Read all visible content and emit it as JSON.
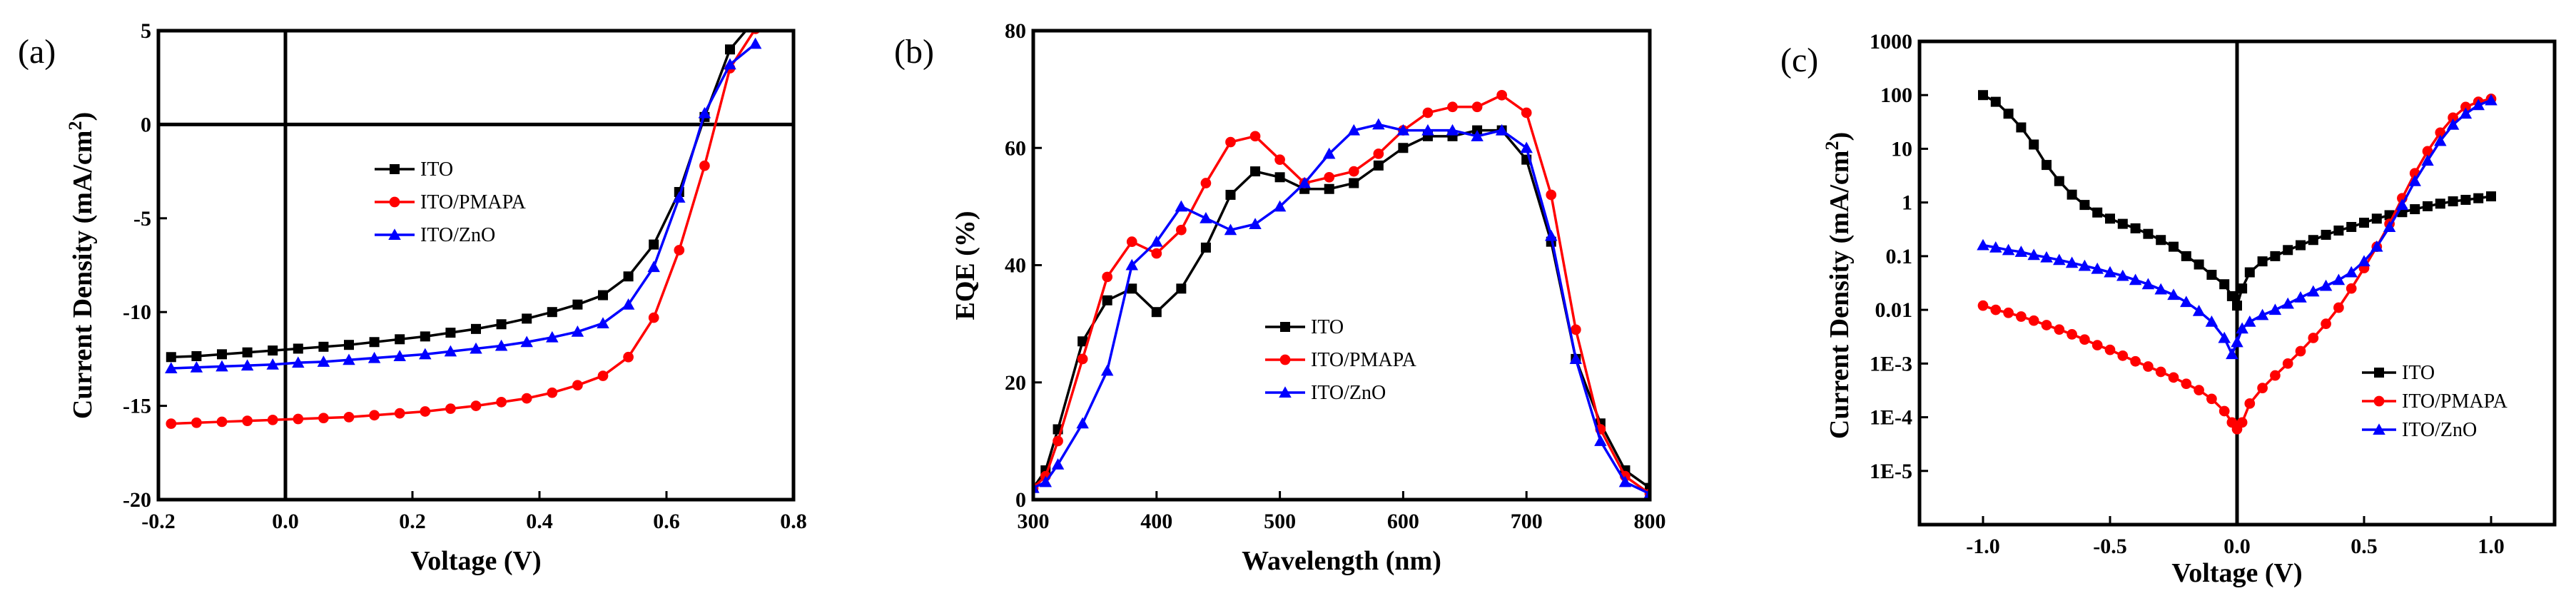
{
  "chart_data": [
    {
      "type": "line",
      "panel_label": "(a)",
      "xlabel": "Voltage (V)",
      "ylabel": "Current Density (mA/cm²)",
      "ylabel_base": "Current Density (mA/cm",
      "ylabel_sup": "2",
      "ylabel_end": ")",
      "xlim": [
        -0.2,
        0.8
      ],
      "ylim": [
        -20,
        5
      ],
      "xticks": [
        "-0.2",
        "0.0",
        "0.2",
        "0.4",
        "0.6",
        "0.8"
      ],
      "yticks": [
        "5",
        "0",
        "-5",
        "-10",
        "-15",
        "-20"
      ],
      "legend": "center",
      "series": [
        {
          "name": "ITO",
          "color": "#000000",
          "marker": "square",
          "x": [
            -0.18,
            -0.14,
            -0.1,
            -0.06,
            -0.02,
            0.02,
            0.06,
            0.1,
            0.14,
            0.18,
            0.22,
            0.26,
            0.3,
            0.34,
            0.38,
            0.42,
            0.46,
            0.5,
            0.54,
            0.58,
            0.62,
            0.66,
            0.7,
            0.73
          ],
          "y": [
            -12.4,
            -12.35,
            -12.25,
            -12.15,
            -12.05,
            -11.95,
            -11.85,
            -11.75,
            -11.6,
            -11.45,
            -11.3,
            -11.1,
            -10.9,
            -10.65,
            -10.35,
            -10.0,
            -9.6,
            -9.1,
            -8.1,
            -6.4,
            -3.6,
            0.4,
            4.0,
            5.2
          ]
        },
        {
          "name": "ITO/PMAPA",
          "color": "#ff0000",
          "marker": "circle",
          "x": [
            -0.18,
            -0.14,
            -0.1,
            -0.06,
            -0.02,
            0.02,
            0.06,
            0.1,
            0.14,
            0.18,
            0.22,
            0.26,
            0.3,
            0.34,
            0.38,
            0.42,
            0.46,
            0.5,
            0.54,
            0.58,
            0.62,
            0.66,
            0.7,
            0.74
          ],
          "y": [
            -15.95,
            -15.9,
            -15.85,
            -15.8,
            -15.75,
            -15.7,
            -15.65,
            -15.6,
            -15.5,
            -15.4,
            -15.3,
            -15.15,
            -15.0,
            -14.8,
            -14.6,
            -14.3,
            -13.9,
            -13.4,
            -12.4,
            -10.3,
            -6.7,
            -2.2,
            3.0,
            5.1
          ]
        },
        {
          "name": "ITO/ZnO",
          "color": "#0000ff",
          "marker": "triangle",
          "x": [
            -0.18,
            -0.14,
            -0.1,
            -0.06,
            -0.02,
            0.02,
            0.06,
            0.1,
            0.14,
            0.18,
            0.22,
            0.26,
            0.3,
            0.34,
            0.38,
            0.42,
            0.46,
            0.5,
            0.54,
            0.58,
            0.62,
            0.66,
            0.7,
            0.74
          ],
          "y": [
            -13.0,
            -12.95,
            -12.9,
            -12.85,
            -12.8,
            -12.7,
            -12.65,
            -12.55,
            -12.45,
            -12.35,
            -12.25,
            -12.1,
            -11.95,
            -11.8,
            -11.6,
            -11.35,
            -11.05,
            -10.6,
            -9.6,
            -7.6,
            -3.9,
            0.6,
            3.2,
            4.3
          ]
        }
      ]
    },
    {
      "type": "line",
      "panel_label": "(b)",
      "xlabel": "Wavelength (nm)",
      "ylabel": "EQE (%)",
      "xlim": [
        300,
        800
      ],
      "ylim": [
        0,
        80
      ],
      "xticks": [
        "300",
        "400",
        "500",
        "600",
        "700",
        "800"
      ],
      "yticks": [
        "0",
        "20",
        "40",
        "60",
        "80"
      ],
      "legend": "center",
      "series": [
        {
          "name": "ITO",
          "color": "#000000",
          "marker": "square",
          "x": [
            300,
            310,
            320,
            340,
            360,
            380,
            400,
            420,
            440,
            460,
            480,
            500,
            520,
            540,
            560,
            580,
            600,
            620,
            640,
            660,
            680,
            700,
            720,
            740,
            760,
            780,
            800
          ],
          "y": [
            2,
            5,
            12,
            27,
            34,
            36,
            32,
            36,
            43,
            52,
            56,
            55,
            53,
            53,
            54,
            57,
            60,
            62,
            62,
            63,
            63,
            58,
            44,
            24,
            13,
            5,
            2
          ]
        },
        {
          "name": "ITO/PMAPA",
          "color": "#ff0000",
          "marker": "circle",
          "x": [
            300,
            310,
            320,
            340,
            360,
            380,
            400,
            420,
            440,
            460,
            480,
            500,
            520,
            540,
            560,
            580,
            600,
            620,
            640,
            660,
            680,
            700,
            720,
            740,
            760,
            780,
            800
          ],
          "y": [
            2,
            4,
            10,
            24,
            38,
            44,
            42,
            46,
            54,
            61,
            62,
            58,
            54,
            55,
            56,
            59,
            63,
            66,
            67,
            67,
            69,
            66,
            52,
            29,
            12,
            4,
            1
          ]
        },
        {
          "name": "ITO/ZnO",
          "color": "#0000ff",
          "marker": "triangle",
          "x": [
            300,
            310,
            320,
            340,
            360,
            380,
            400,
            420,
            440,
            460,
            480,
            500,
            520,
            540,
            560,
            580,
            600,
            620,
            640,
            660,
            680,
            700,
            720,
            740,
            760,
            780,
            800
          ],
          "y": [
            2,
            3,
            6,
            13,
            22,
            40,
            44,
            50,
            48,
            46,
            47,
            50,
            54,
            59,
            63,
            64,
            63,
            63,
            63,
            62,
            63,
            60,
            45,
            24,
            10,
            3,
            1
          ]
        }
      ]
    },
    {
      "type": "line",
      "panel_label": "(c)",
      "xlabel": "Voltage (V)",
      "ylabel": "Current Density (mA/cm²)",
      "ylabel_base": "Current Density (mA/cm",
      "ylabel_sup": "2",
      "ylabel_end": ")",
      "yscale": "log",
      "xlim": [
        -1.25,
        1.25
      ],
      "ylim": [
        1e-06,
        1000
      ],
      "xticks": [
        "-1.0",
        "-0.5",
        "0.0",
        "0.5",
        "1.0"
      ],
      "yticks": [
        "1000",
        "100",
        "10",
        "1",
        "0.1",
        "0.01",
        "1E-3",
        "1E-4",
        "1E-5"
      ],
      "legend": "bottom-right",
      "series": [
        {
          "name": "ITO",
          "color": "#000000",
          "marker": "square",
          "x": [
            -1.0,
            -0.95,
            -0.9,
            -0.85,
            -0.8,
            -0.75,
            -0.7,
            -0.65,
            -0.6,
            -0.55,
            -0.5,
            -0.45,
            -0.4,
            -0.35,
            -0.3,
            -0.25,
            -0.2,
            -0.15,
            -0.1,
            -0.05,
            -0.02,
            0.0,
            0.02,
            0.05,
            0.1,
            0.15,
            0.2,
            0.25,
            0.3,
            0.35,
            0.4,
            0.45,
            0.5,
            0.55,
            0.6,
            0.65,
            0.7,
            0.75,
            0.8,
            0.85,
            0.9,
            0.95,
            1.0
          ],
          "y": [
            100,
            75,
            45,
            25,
            12,
            5,
            2.5,
            1.4,
            0.9,
            0.65,
            0.5,
            0.4,
            0.33,
            0.26,
            0.2,
            0.15,
            0.1,
            0.07,
            0.045,
            0.03,
            0.018,
            0.012,
            0.025,
            0.05,
            0.08,
            0.1,
            0.13,
            0.16,
            0.2,
            0.25,
            0.3,
            0.35,
            0.42,
            0.5,
            0.58,
            0.66,
            0.75,
            0.85,
            0.95,
            1.05,
            1.12,
            1.2,
            1.3
          ]
        },
        {
          "name": "ITO/PMAPA",
          "color": "#ff0000",
          "marker": "circle",
          "x": [
            -1.0,
            -0.95,
            -0.9,
            -0.85,
            -0.8,
            -0.75,
            -0.7,
            -0.65,
            -0.6,
            -0.55,
            -0.5,
            -0.45,
            -0.4,
            -0.35,
            -0.3,
            -0.25,
            -0.2,
            -0.15,
            -0.1,
            -0.05,
            -0.02,
            0.0,
            0.02,
            0.05,
            0.1,
            0.15,
            0.2,
            0.25,
            0.3,
            0.35,
            0.4,
            0.45,
            0.5,
            0.55,
            0.6,
            0.65,
            0.7,
            0.75,
            0.8,
            0.85,
            0.9,
            0.95,
            1.0
          ],
          "y": [
            0.012,
            0.01,
            0.0088,
            0.0075,
            0.0063,
            0.0052,
            0.0043,
            0.0035,
            0.0028,
            0.0022,
            0.0018,
            0.0014,
            0.0011,
            0.00088,
            0.0007,
            0.00055,
            0.00042,
            0.00032,
            0.00022,
            0.00013,
            8e-05,
            6e-05,
            8e-05,
            0.00018,
            0.00035,
            0.0006,
            0.001,
            0.0017,
            0.003,
            0.0055,
            0.011,
            0.025,
            0.06,
            0.15,
            0.4,
            1.2,
            3.5,
            9,
            20,
            38,
            60,
            75,
            85
          ]
        },
        {
          "name": "ITO/ZnO",
          "color": "#0000ff",
          "marker": "triangle",
          "x": [
            -1.0,
            -0.95,
            -0.9,
            -0.85,
            -0.8,
            -0.75,
            -0.7,
            -0.65,
            -0.6,
            -0.55,
            -0.5,
            -0.45,
            -0.4,
            -0.35,
            -0.3,
            -0.25,
            -0.2,
            -0.15,
            -0.1,
            -0.05,
            -0.02,
            0.0,
            0.02,
            0.05,
            0.1,
            0.15,
            0.2,
            0.25,
            0.3,
            0.35,
            0.4,
            0.45,
            0.5,
            0.55,
            0.6,
            0.65,
            0.7,
            0.75,
            0.8,
            0.85,
            0.9,
            0.95,
            1.0
          ],
          "y": [
            0.16,
            0.145,
            0.13,
            0.12,
            0.105,
            0.095,
            0.085,
            0.075,
            0.066,
            0.058,
            0.05,
            0.043,
            0.036,
            0.03,
            0.024,
            0.019,
            0.014,
            0.0095,
            0.006,
            0.003,
            0.0015,
            0.0025,
            0.0045,
            0.006,
            0.008,
            0.01,
            0.013,
            0.017,
            0.022,
            0.028,
            0.036,
            0.05,
            0.08,
            0.15,
            0.35,
            0.9,
            2.5,
            6,
            14,
            28,
            45,
            65,
            80
          ]
        }
      ]
    }
  ]
}
